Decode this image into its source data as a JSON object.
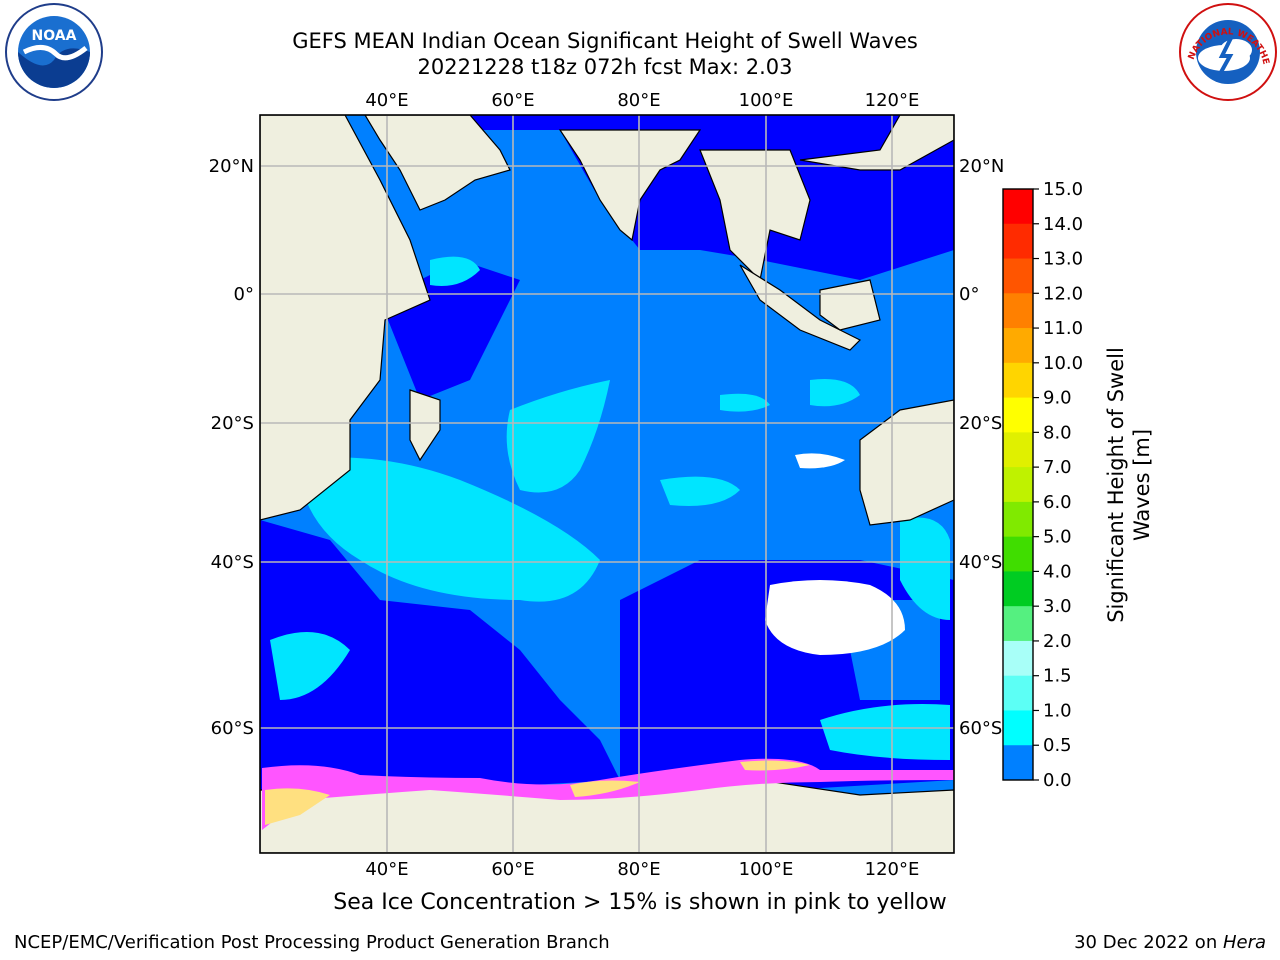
{
  "header": {
    "title_line1": "GEFS MEAN Indian Ocean Significant Height of Swell Waves",
    "title_line2": "20221228 t18z 072h fcst   Max: 2.03"
  },
  "logos": {
    "left": {
      "name": "noaa-logo",
      "text": "NOAA"
    },
    "right": {
      "name": "nws-logo",
      "text": "NATIONAL WEATHER SERVICE"
    }
  },
  "map": {
    "lon_ticks": [
      "40°E",
      "60°E",
      "80°E",
      "100°E",
      "120°E"
    ],
    "lat_ticks": [
      "20°N",
      "0°",
      "20°S",
      "40°S",
      "60°S"
    ],
    "colors": {
      "ocean_deep": "#0000ff",
      "ocean_mid": "#0080ff",
      "ocean_light": "#00e5ff",
      "ocean_pale": "#5cfff5",
      "land": "#efefdf",
      "ice_pink": "#ff55ff",
      "ice_yellow": "#ffe080",
      "grid": "#b8b8b8"
    }
  },
  "colorbar": {
    "label_line1": "Significant Height of Swell",
    "label_line2": "Waves [m]",
    "ticks": [
      "15.0",
      "14.0",
      "13.0",
      "12.0",
      "11.0",
      "10.0",
      "9.0",
      "8.0",
      "7.0",
      "6.0",
      "5.0",
      "4.0",
      "3.0",
      "2.0",
      "1.5",
      "1.0",
      "0.5",
      "0.0"
    ],
    "colors": [
      "#ff0000",
      "#ff2b00",
      "#ff5500",
      "#ff8000",
      "#ffaa00",
      "#ffd500",
      "#ffff00",
      "#e0f000",
      "#bff200",
      "#80ea00",
      "#40dd00",
      "#00cc22",
      "#55f080",
      "#a8fff8",
      "#5cfff5",
      "#00ffff",
      "#0080ff",
      "#0000ff"
    ]
  },
  "notes": {
    "sea_ice": "Sea Ice Concentration > 15% is shown in pink to yellow"
  },
  "footer": {
    "left": "NCEP/EMC/Verification Post Processing Product Generation Branch",
    "right_date": "30 Dec 2022 on ",
    "right_machine": "Hera"
  }
}
